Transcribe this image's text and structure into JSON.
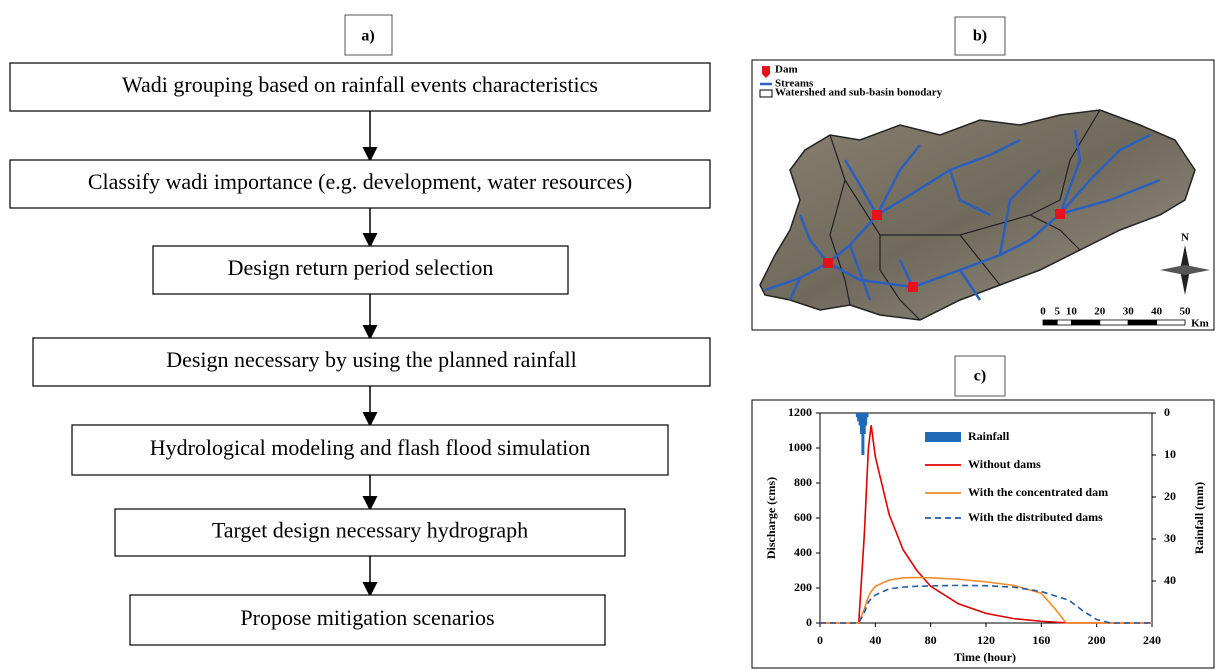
{
  "panels": {
    "a": "a)",
    "b": "b)",
    "c": "c)"
  },
  "flowchart": {
    "steps": [
      "Wadi grouping based on rainfall events characteristics",
      "Classify wadi importance (e.g. development, water resources)",
      "Design return period selection",
      "Design necessary by using the planned rainfall",
      "Hydrological modeling and flash flood simulation",
      "Target design necessary hydrograph",
      "Propose mitigation scenarios"
    ]
  },
  "map": {
    "legend": [
      "Dam",
      "Streams",
      "Watershed and sub-basin bonodary"
    ],
    "scale_ticks": [
      0,
      5,
      10,
      20,
      30,
      40,
      50
    ],
    "scale_unit": "Km",
    "north": "N"
  },
  "chart_data": {
    "type": "line",
    "xlabel": "Time (hour)",
    "ylabel": "Discharge (cms)",
    "y2label": "Rainfall (mm)",
    "x": [
      0,
      28,
      32,
      35,
      37,
      40,
      50,
      60,
      70,
      80,
      100,
      120,
      140,
      160,
      170,
      178,
      180,
      190,
      200,
      210,
      240
    ],
    "series": [
      {
        "name": "Rainfall",
        "type": "bar",
        "axis": "y2",
        "color": "#1f6bb5",
        "x": [
          27,
          28,
          29,
          30,
          31,
          32,
          33,
          34
        ],
        "values": [
          1,
          2,
          3,
          5,
          10,
          5,
          3,
          1
        ]
      },
      {
        "name": "Without dams",
        "color": "#e00000",
        "values": [
          0,
          0,
          500,
          1000,
          1130,
          950,
          620,
          420,
          300,
          210,
          110,
          55,
          25,
          10,
          5,
          1,
          0,
          0,
          0,
          0,
          0
        ]
      },
      {
        "name": "With the concentrated dam",
        "color": "#f28c28",
        "values": [
          0,
          0,
          80,
          150,
          180,
          210,
          245,
          258,
          260,
          258,
          250,
          235,
          215,
          170,
          80,
          0,
          0,
          0,
          0,
          0,
          0
        ]
      },
      {
        "name": "With the distributed dams",
        "color": "#1f5aa6",
        "dashed": true,
        "values": [
          0,
          0,
          60,
          120,
          140,
          160,
          195,
          205,
          210,
          212,
          215,
          213,
          205,
          180,
          155,
          135,
          130,
          70,
          20,
          0,
          0
        ]
      }
    ],
    "xlim": [
      0,
      240
    ],
    "xticks": [
      0,
      40,
      80,
      120,
      160,
      200,
      240
    ],
    "ylim": [
      0,
      1200
    ],
    "yticks": [
      0,
      200,
      400,
      600,
      800,
      1000,
      1200
    ],
    "y2lim": [
      50,
      0
    ],
    "y2ticks": [
      0,
      10,
      20,
      30,
      40
    ]
  }
}
